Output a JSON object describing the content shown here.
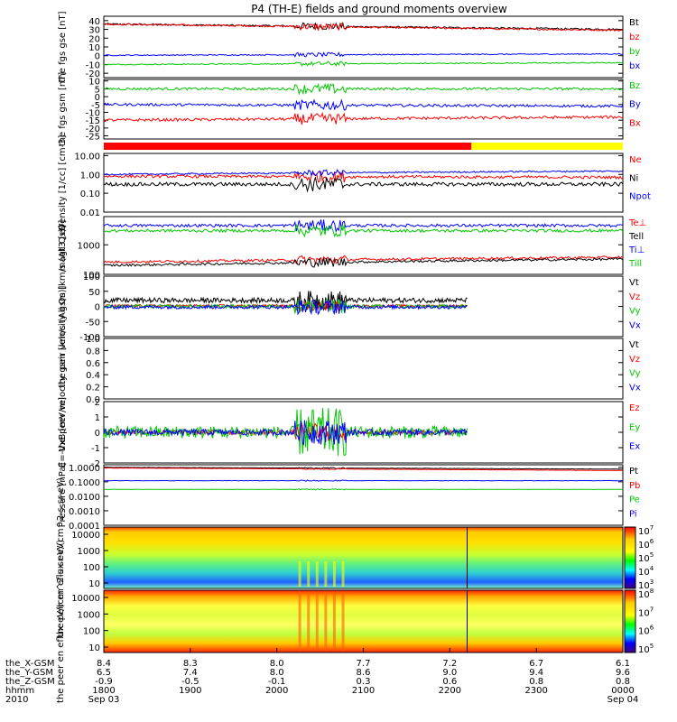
{
  "title": "P4 (TH-E) fields and ground moments overview",
  "chart_data": [
    {
      "type": "line",
      "ylabel": "the fgs gse [nT]",
      "ylim": [
        -25,
        45
      ],
      "ticks": [
        40,
        30,
        20,
        10,
        0,
        -10,
        -20
      ],
      "series": [
        {
          "name": "Bt",
          "color": "#000000",
          "level": 36,
          "end": 30,
          "noise": 1.0
        },
        {
          "name": "bz",
          "color": "#ff0000",
          "level": 36,
          "end": 29,
          "noise": 1.0
        },
        {
          "name": "by",
          "color": "#00c800",
          "level": -10,
          "end": -8,
          "noise": 0.6
        },
        {
          "name": "bx",
          "color": "#0000ff",
          "level": 0.5,
          "end": 2,
          "noise": 0.6
        }
      ]
    },
    {
      "type": "line",
      "ylabel": "the fgs gsm [nT]",
      "ylim": [
        -27,
        11
      ],
      "ticks": [
        10,
        5,
        0,
        -5,
        -10,
        -15,
        -20,
        -25
      ],
      "series": [
        {
          "name": "Bz",
          "color": "#00c800",
          "level": 5,
          "end": 5,
          "noise": 0.8
        },
        {
          "name": "By",
          "color": "#0000ff",
          "level": -5,
          "end": -6,
          "noise": 0.8
        },
        {
          "name": "Bx",
          "color": "#ff0000",
          "level": -15,
          "end": -13,
          "noise": 0.9
        }
      ]
    },
    {
      "type": "line",
      "ylabel": "Density [1/cc] [cm-3]",
      "log": true,
      "ylim": [
        0.01,
        13
      ],
      "ticks": [
        "10.00",
        "1.00",
        "0.10",
        "0.01"
      ],
      "series": [
        {
          "name": "Ne",
          "color": "#ff0000",
          "level": 0.8,
          "end": 0.7,
          "noise": 0.15
        },
        {
          "name": "Ni",
          "color": "#000000",
          "level": 0.3,
          "end": 0.3,
          "noise": 0.2
        },
        {
          "name": "Npot",
          "color": "#0000ff",
          "level": 1.0,
          "end": 1.5,
          "noise": 0.08
        }
      ]
    },
    {
      "type": "line",
      "ylabel": "magt3 [eV]",
      "log": true,
      "ylim": [
        100,
        9000
      ],
      "ticks": [
        "1000",
        "100"
      ],
      "series": [
        {
          "name": "Te⊥",
          "color": "#ff0000",
          "level": 260,
          "end": 380,
          "noise": 0.08
        },
        {
          "name": "Tell",
          "color": "#000000",
          "level": 200,
          "end": 330,
          "noise": 0.08
        },
        {
          "name": "Ti⊥",
          "color": "#0000ff",
          "level": 4500,
          "end": 4500,
          "noise": 0.1
        },
        {
          "name": "Till",
          "color": "#00c800",
          "level": 3000,
          "end": 3000,
          "noise": 0.1
        }
      ]
    },
    {
      "type": "line",
      "ylabel": "the peir velocity gsm [km/s (All Qs)]",
      "ylim": [
        -100,
        100
      ],
      "ticks": [
        100,
        50,
        0,
        -50,
        -100
      ],
      "series": [
        {
          "name": "Vt",
          "color": "#000000",
          "level": 20,
          "end": 20,
          "noise": 8
        },
        {
          "name": "Vz",
          "color": "#ff0000",
          "level": 2,
          "end": 2,
          "noise": 4
        },
        {
          "name": "Vy",
          "color": "#00c800",
          "level": 0,
          "end": 0,
          "noise": 6
        },
        {
          "name": "Vx",
          "color": "#0000ff",
          "level": -2,
          "end": -2,
          "noise": 6
        }
      ]
    },
    {
      "type": "line",
      "ylabel": "the peer velocity gsm [km/s (All Qs)]",
      "ylim": [
        0,
        1
      ],
      "ticks": [
        "1.0",
        "0.8",
        "0.6",
        "0.4",
        "0.2",
        "0.0"
      ],
      "series": [
        {
          "name": "Vt",
          "color": "#000000"
        },
        {
          "name": "Vz",
          "color": "#ff0000"
        },
        {
          "name": "Vy",
          "color": "#00c800"
        },
        {
          "name": "Vx",
          "color": "#0000ff"
        }
      ]
    },
    {
      "type": "line",
      "ylabel": "E=-VxB [mV/m]",
      "ylim": [
        -2,
        2
      ],
      "ticks": [
        2,
        1,
        0,
        -1,
        -2
      ],
      "series": [
        {
          "name": "Ez",
          "color": "#ff0000",
          "level": 0,
          "end": 0,
          "noise": 0.15
        },
        {
          "name": "Ey",
          "color": "#00c800",
          "level": 0,
          "end": 0,
          "noise": 0.4
        },
        {
          "name": "Ex",
          "color": "#0000ff",
          "level": 0,
          "end": 0,
          "noise": 0.2
        }
      ]
    },
    {
      "type": "line",
      "ylabel": "Pressure [nPa]",
      "log": true,
      "ylim": [
        0.0001,
        1.5
      ],
      "ticks": [
        "1.0000",
        "0.1000",
        "0.0100",
        "0.0010",
        "0.0001"
      ],
      "series": [
        {
          "name": "Pt",
          "color": "#000000",
          "level": 1.0,
          "end": 0.75,
          "noise": 0.02
        },
        {
          "name": "Pb",
          "color": "#ff0000",
          "level": 0.9,
          "end": 0.6,
          "noise": 0.02
        },
        {
          "name": "Pe",
          "color": "#00c800",
          "level": 0.03,
          "end": 0.03,
          "noise": 0.02
        },
        {
          "name": "Pi",
          "color": "#0000ff",
          "level": 0.12,
          "end": 0.12,
          "noise": 0.02
        }
      ]
    },
    {
      "type": "heatmap",
      "ylabel": "the peir en eflux eV/(cm^2-s-sr-eV)",
      "ticks": [
        "10000",
        "1000",
        "100",
        "10"
      ],
      "colorbar_ticks": [
        "10^7",
        "10^6",
        "10^5",
        "10^4",
        "10^3"
      ]
    },
    {
      "type": "heatmap",
      "ylabel": "the peer en eflux eV/(cm^2-s-sr-eV)",
      "ticks": [
        "10000",
        "1000",
        "100",
        "10"
      ],
      "colorbar_ticks": [
        "10^8",
        "10^7",
        "10^6",
        "10^5"
      ]
    }
  ],
  "x_axis": {
    "rows": [
      {
        "label": "the_X-GSM",
        "values": [
          "8.4",
          "8.3",
          "8.0",
          "7.7",
          "7.2",
          "6.7",
          "6.1"
        ]
      },
      {
        "label": "the_Y-GSM",
        "values": [
          "6.5",
          "7.4",
          "8.0",
          "8.6",
          "9.0",
          "9.4",
          "9.6"
        ]
      },
      {
        "label": "the_Z-GSM",
        "values": [
          "-0.9",
          "-0.5",
          "-0.1",
          "0.3",
          "0.6",
          "0.8",
          "0.8"
        ]
      },
      {
        "label": "hhmm",
        "values": [
          "1800",
          "1900",
          "2000",
          "2100",
          "2200",
          "2300",
          "0000"
        ]
      }
    ],
    "year": "2010",
    "start_date": "Sep 03",
    "end_date": "Sep 04"
  },
  "mode_bar": {
    "colors": [
      "#ff0000",
      "#ffff00"
    ],
    "split_hour": 22.25
  },
  "time_range": {
    "start_hour": 18,
    "end_hour": 24,
    "disturbance_hour": 20.5,
    "data_end_hour": 22.2
  }
}
